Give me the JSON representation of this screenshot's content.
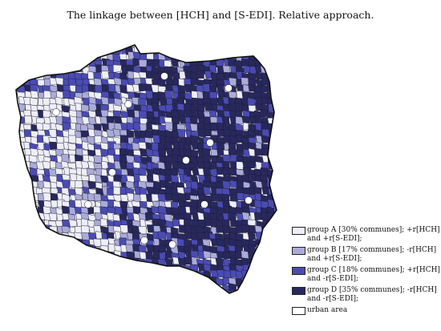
{
  "title": "The linkage between [HCH] and [S-EDI]. Relative approach.",
  "legend": [
    {
      "label": "group A [30% communes]; +r[HCH] and +r[S-EDI];",
      "color": "#eeeef8"
    },
    {
      "label": "group B [17% communes]; -r[HCH] and +r[S-EDI];",
      "color": "#aaabd9"
    },
    {
      "label": "group C [18% communes]; +r[HCH] and -r[S-EDI];",
      "color": "#4a4bb3"
    },
    {
      "label": "group D [35% communes]; -r[HCH] and -r[S-EDI];",
      "color": "#28285e"
    },
    {
      "label": "urban area",
      "color": "#ffffff"
    }
  ]
}
